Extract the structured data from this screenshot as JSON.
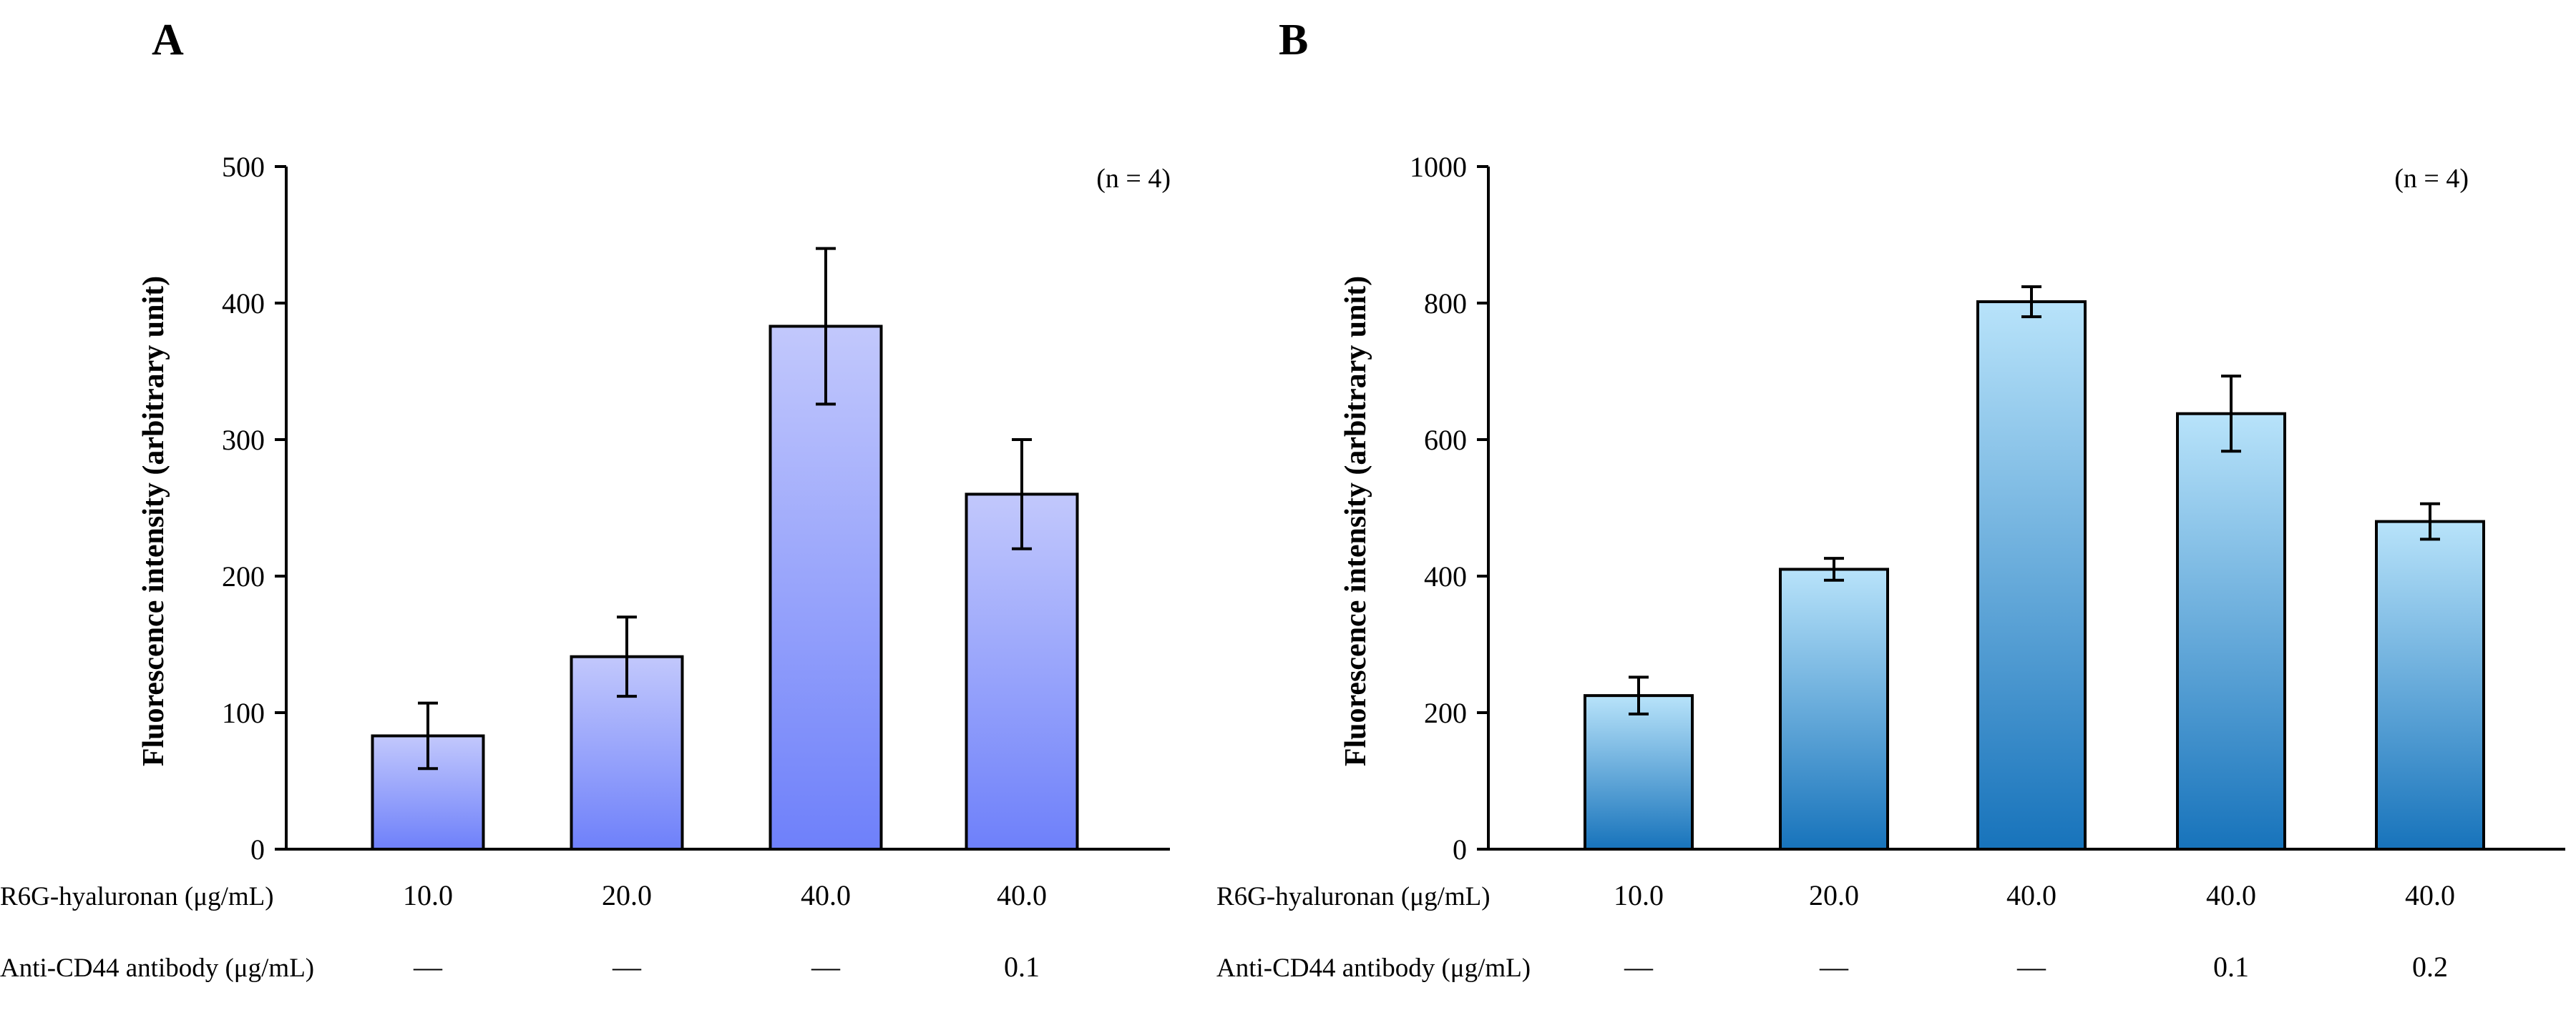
{
  "chart_data": [
    {
      "panel": "A",
      "type": "bar",
      "ylabel": "Fluorescence intensity (arbitrary unit)",
      "ylim": [
        0,
        500
      ],
      "yticks": [
        0,
        100,
        200,
        300,
        400,
        500
      ],
      "note": "(n = 4)",
      "gradient": [
        "#6E80FA",
        "#C2C8FC"
      ],
      "row_labels": [
        "R6G-hyaluronan (μg/mL)",
        "Anti-CD44 antibody (μg/mL)"
      ],
      "categories": [
        {
          "row1": "10.0",
          "row2": "—"
        },
        {
          "row1": "20.0",
          "row2": "—"
        },
        {
          "row1": "40.0",
          "row2": "—"
        },
        {
          "row1": "40.0",
          "row2": "0.1"
        }
      ],
      "values": [
        83,
        141,
        383,
        260
      ],
      "errors": [
        24,
        29,
        57,
        40
      ]
    },
    {
      "panel": "B",
      "type": "bar",
      "ylabel": "Fluorescence intensity (arbitrary unit)",
      "ylim": [
        0,
        1000
      ],
      "yticks": [
        0,
        200,
        400,
        600,
        800,
        1000
      ],
      "note": "(n = 4)",
      "gradient": [
        "#1773BB",
        "#B8E3FA"
      ],
      "row_labels": [
        "R6G-hyaluronan (μg/mL)",
        "Anti-CD44 antibody (μg/mL)"
      ],
      "categories": [
        {
          "row1": "10.0",
          "row2": "—"
        },
        {
          "row1": "20.0",
          "row2": "—"
        },
        {
          "row1": "40.0",
          "row2": "—"
        },
        {
          "row1": "40.0",
          "row2": "0.1"
        },
        {
          "row1": "40.0",
          "row2": "0.2"
        }
      ],
      "values": [
        225,
        410,
        802,
        638,
        480
      ],
      "errors": [
        27,
        16,
        22,
        55,
        26
      ]
    }
  ]
}
